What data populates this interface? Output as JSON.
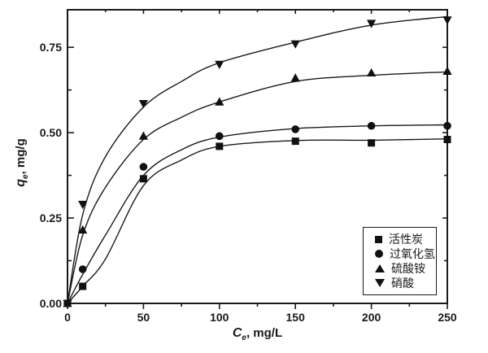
{
  "chart_data": {
    "type": "scatter+line",
    "title": "",
    "xlabel": {
      "symbol": "C",
      "sub": "e",
      "rest": ", mg/L"
    },
    "ylabel": {
      "symbol": "q",
      "sub": "e",
      "rest": ", mg/g"
    },
    "xlim": [
      0,
      250
    ],
    "ylim": [
      0,
      0.86
    ],
    "x_ticks": [
      0,
      50,
      100,
      150,
      200,
      250
    ],
    "x_tick_labels": [
      "0",
      "50",
      "100",
      "150",
      "200",
      "250"
    ],
    "x_minor_ticks": [
      25,
      75,
      125,
      175,
      225
    ],
    "y_ticks": [
      0,
      0.25,
      0.5,
      0.75
    ],
    "y_tick_labels": [
      "0.00",
      "0.25",
      "0.50",
      "0.75"
    ],
    "y_minor_ticks": [
      0.125,
      0.375,
      0.625
    ],
    "grid": false,
    "legend_position": "inside-lower-right",
    "colors": {
      "foreground": "#1a1a1a",
      "background": "#ffffff"
    },
    "fit_x": [
      0,
      10,
      25,
      50,
      75,
      100,
      150,
      200,
      250
    ],
    "series": [
      {
        "name": "活性炭",
        "marker": "square",
        "x": [
          0,
          10,
          50,
          100,
          150,
          200,
          250
        ],
        "y": [
          0,
          0.05,
          0.365,
          0.46,
          0.475,
          0.47,
          0.48
        ],
        "fit_y": [
          0,
          0.05,
          0.13,
          0.345,
          0.42,
          0.46,
          0.477,
          0.478,
          0.482
        ]
      },
      {
        "name": "过氧化氢",
        "marker": "circle",
        "x": [
          0,
          10,
          50,
          100,
          150,
          200,
          250
        ],
        "y": [
          0,
          0.1,
          0.4,
          0.49,
          0.51,
          0.52,
          0.52
        ],
        "fit_y": [
          0,
          0.085,
          0.2,
          0.375,
          0.45,
          0.487,
          0.512,
          0.52,
          0.523
        ]
      },
      {
        "name": "硫酸铵",
        "marker": "triangle-up",
        "x": [
          0,
          10,
          50,
          100,
          150,
          200,
          250
        ],
        "y": [
          0,
          0.215,
          0.49,
          0.59,
          0.66,
          0.675,
          0.68
        ],
        "fit_y": [
          0,
          0.2,
          0.34,
          0.48,
          0.545,
          0.59,
          0.65,
          0.668,
          0.678
        ]
      },
      {
        "name": "硝酸",
        "marker": "triangle-down",
        "x": [
          0,
          10,
          50,
          100,
          150,
          200,
          250
        ],
        "y": [
          0,
          0.29,
          0.585,
          0.7,
          0.76,
          0.82,
          0.83
        ],
        "fit_y": [
          0,
          0.26,
          0.43,
          0.575,
          0.65,
          0.705,
          0.765,
          0.815,
          0.84
        ]
      }
    ]
  }
}
